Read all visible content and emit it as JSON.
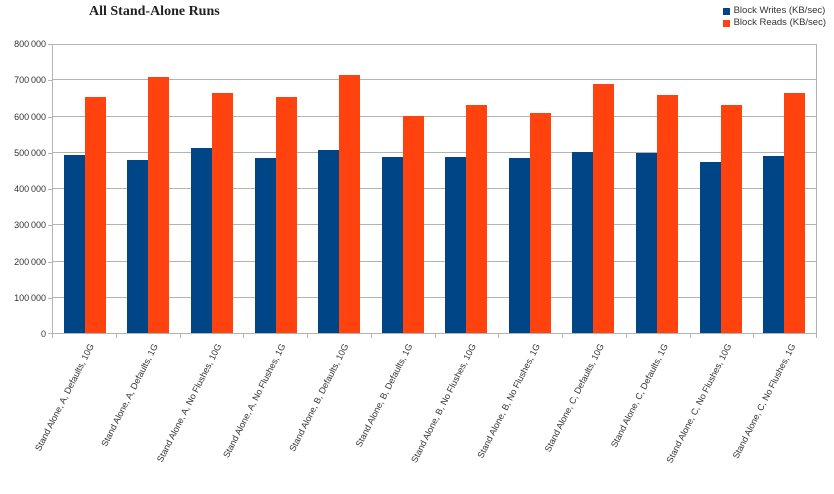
{
  "chart_data": {
    "type": "bar",
    "title": "All Stand-Alone Runs",
    "categories": [
      "Stand Alone, A, Defaults, 10G",
      "Stand Alone, A, Defaults, 1G",
      "Stand Alone, A, No Flushes, 10G",
      "Stand Alone, A, No Flushes, 1G",
      "Stand Alone, B, Defaults, 10G",
      "Stand Alone, B, Defaults, 1G",
      "Stand Alone, B, No Flushes, 10G",
      "Stand Alone, B, No Flushes, 1G",
      "Stand Alone, C, Defaults, 10G",
      "Stand Alone, C, Defaults, 1G",
      "Stand Alone, C, No Flushes, 10G",
      "Stand Alone, C, No Flushes, 1G"
    ],
    "series": [
      {
        "name": "Block Writes (KB/sec)",
        "color": "#004586",
        "values": [
          494000,
          480000,
          514000,
          486000,
          508000,
          488000,
          488000,
          485000,
          503000,
          500000,
          476000,
          491000
        ]
      },
      {
        "name": "Block Reads (KB/sec)",
        "color": "#FF420E",
        "values": [
          655000,
          711000,
          668000,
          656000,
          716000,
          603000,
          634000,
          610000,
          691000,
          661000,
          634000,
          666000
        ]
      }
    ],
    "ylim": [
      0,
      800000
    ],
    "ytick_step": 100000,
    "ytick_labels": [
      "0",
      "100 000",
      "200 000",
      "300 000",
      "400 000",
      "500 000",
      "600 000",
      "700 000",
      "800 000"
    ],
    "xlabel": "",
    "ylabel": "",
    "grid": true,
    "legend_position": "top-right",
    "colors": {
      "background": "#ffffff",
      "gridline": "#b3b3b3",
      "axis": "#b3b3b3",
      "label_text": "#333333",
      "title_text": "#222222"
    }
  }
}
